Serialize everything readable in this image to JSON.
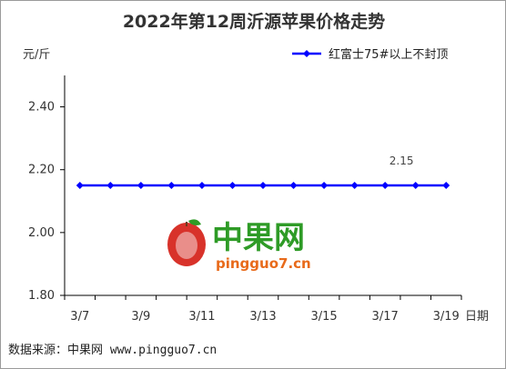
{
  "chart_data": {
    "type": "line",
    "title": "2022年第12周沂源苹果价格走势",
    "ylabel": "元/斤",
    "xlabel": "日期",
    "x": [
      "3/7",
      "3/8",
      "3/9",
      "3/10",
      "3/11",
      "3/12",
      "3/13",
      "3/14",
      "3/15",
      "3/16",
      "3/17",
      "3/18",
      "3/19"
    ],
    "tick_labels": [
      "3/7",
      "3/9",
      "3/11",
      "3/13",
      "3/15",
      "3/17",
      "3/19"
    ],
    "yticks": [
      "1.80",
      "2.00",
      "2.20",
      "2.40"
    ],
    "ylim": [
      1.8,
      2.5
    ],
    "series": [
      {
        "name": "红富士75#以上不封顶",
        "values": [
          2.15,
          2.15,
          2.15,
          2.15,
          2.15,
          2.15,
          2.15,
          2.15,
          2.15,
          2.15,
          2.15,
          2.15,
          2.15
        ],
        "color": "#0000ff"
      }
    ],
    "annotations": [
      {
        "x": "3/17",
        "label": "2.15"
      }
    ],
    "grid": false,
    "legend": "top-right"
  },
  "watermark": {
    "name": "中果网",
    "url": "pingguo7.cn",
    "green": "#2e9b26",
    "orange": "#e86a1a",
    "red": "#d8322a"
  },
  "footer": {
    "source": "数据来源：中果网 www.pingguo7.cn"
  }
}
